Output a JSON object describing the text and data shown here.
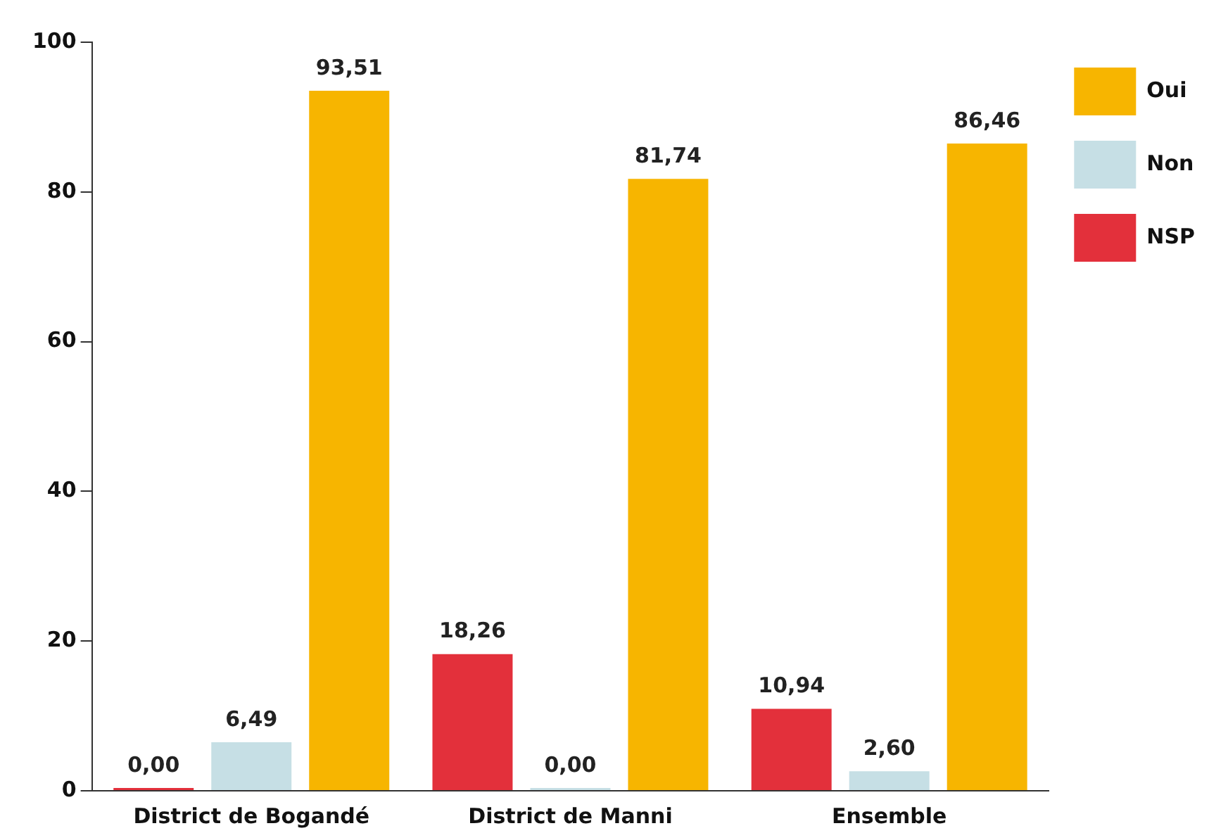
{
  "chart_data": {
    "type": "bar",
    "categories": [
      "District de Bogandé",
      "District de Manni",
      "Ensemble"
    ],
    "series": [
      {
        "name": "NSP",
        "color": "#e3303b",
        "values": [
          0.0,
          18.26,
          10.94
        ],
        "value_labels": [
          "0,00",
          "18,26",
          "10,94"
        ]
      },
      {
        "name": "Non",
        "color": "#c6dfe5",
        "values": [
          6.49,
          0.0,
          2.6
        ],
        "value_labels": [
          "6,49",
          "0,00",
          "2,60"
        ]
      },
      {
        "name": "Oui",
        "color": "#f7b500",
        "values": [
          93.51,
          81.74,
          86.46
        ],
        "value_labels": [
          "93,51",
          "81,74",
          "86,46"
        ]
      }
    ],
    "ylim": [
      0,
      100
    ],
    "yticks": [
      0,
      20,
      40,
      60,
      80,
      100
    ],
    "grid": false,
    "legend": "top right"
  }
}
